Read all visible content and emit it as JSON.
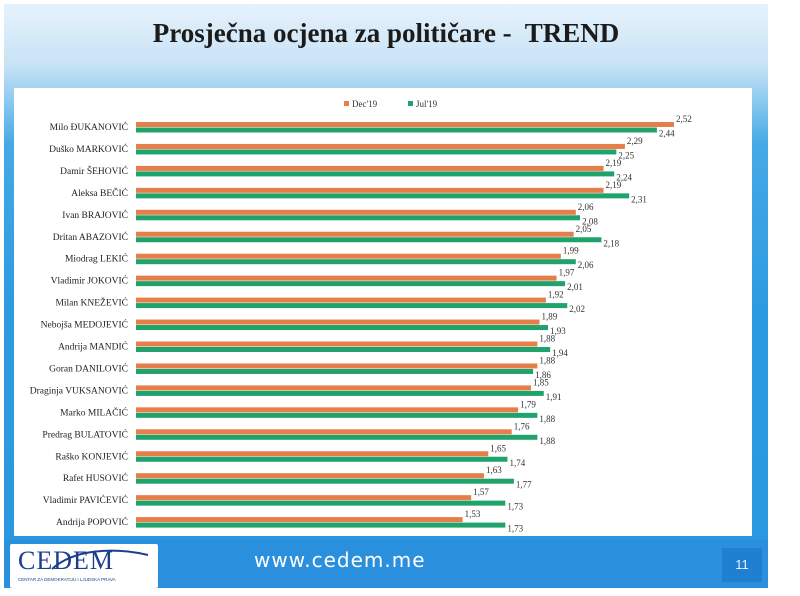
{
  "slide": {
    "title": "Prosječna ocjena za političare -  TREND",
    "url": "www.cedem.me",
    "page_number": "11",
    "logo_text": "CEDEM",
    "logo_subtitle": "CENTAR ZA DEMOKRATIJU I LJUDSKA PRAVA"
  },
  "colors": {
    "dec19": "#e67e4a",
    "jul19": "#1fa36a",
    "background_blue": "#2a98e0"
  },
  "chart_data": {
    "type": "bar",
    "orientation": "horizontal",
    "categories": [
      "Milo ĐUKANOVIĆ",
      "Duško MARKOVIĆ",
      "Damir ŠEHOVIĆ",
      "Aleksa BEČIĆ",
      "Ivan BRAJOVIĆ",
      "Dritan ABAZOVIĆ",
      "Miodrag LEKIĆ",
      "Vladimir JOKOVIĆ",
      "Milan KNEŽEVIĆ",
      "Nebojša MEDOJEVIĆ",
      "Andrija MANDIĆ",
      "Goran DANILOVIĆ",
      "Draginja VUKSANOVIĆ",
      "Marko MILAČIĆ",
      "Predrag BULATOVIĆ",
      "Raško KONJEVIĆ",
      "Rafet HUSOVIĆ",
      "Vladimir PAVIĆEVIĆ",
      "Andrija POPOVIĆ"
    ],
    "series": [
      {
        "name": "Dec'19",
        "values": [
          2.52,
          2.29,
          2.19,
          2.19,
          2.06,
          2.05,
          1.99,
          1.97,
          1.92,
          1.89,
          1.88,
          1.88,
          1.85,
          1.79,
          1.76,
          1.65,
          1.63,
          1.57,
          1.53
        ],
        "labels": [
          "2,52",
          "2,29",
          "2,19",
          "2,19",
          "2,06",
          "2,05",
          "1,99",
          "1,97",
          "1,92",
          "1,89",
          "1,88",
          "1,88",
          "1,85",
          "1,79",
          "1,76",
          "1,65",
          "1,63",
          "1,57",
          "1,53"
        ]
      },
      {
        "name": "Jul'19",
        "values": [
          2.44,
          2.25,
          2.24,
          2.31,
          2.08,
          2.18,
          2.06,
          2.01,
          2.02,
          1.93,
          1.94,
          1.86,
          1.91,
          1.88,
          1.88,
          1.74,
          1.77,
          1.73,
          1.73
        ],
        "labels": [
          "2,44",
          "2,25",
          "2,24",
          "2,31",
          "2,08",
          "2,18",
          "2,06",
          "2,01",
          "2,02",
          "1,93",
          "1,94",
          "1,86",
          "1,91",
          "1,88",
          "1,88",
          "1,74",
          "1,77",
          "1,73",
          "1,73"
        ]
      }
    ],
    "xlim": [
      0,
      2.52
    ],
    "grid": false,
    "legend": "top-center"
  }
}
